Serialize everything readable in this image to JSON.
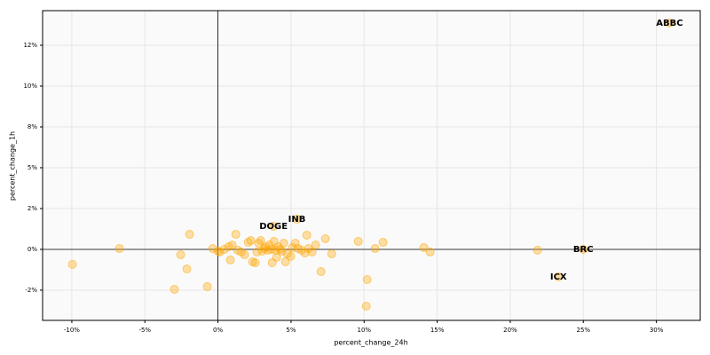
{
  "chart_data": {
    "type": "scatter",
    "xlabel": "percent_change_24h",
    "ylabel": "percent_change_1h",
    "series": [
      {
        "color": "#ffa500",
        "x": [
          -9.96,
          -6.74,
          -1.94,
          -2.55,
          -2.13,
          -2.98,
          -0.73,
          -0.36,
          0.0,
          0.12,
          0.43,
          0.73,
          0.97,
          0.85,
          1.22,
          1.34,
          1.58,
          1.82,
          2.07,
          2.25,
          2.37,
          2.55,
          2.67,
          2.79,
          2.92,
          3.04,
          3.16,
          3.28,
          3.4,
          3.52,
          3.65,
          3.71,
          3.83,
          3.95,
          4.01,
          4.13,
          4.25,
          4.37,
          4.5,
          4.62,
          4.74,
          4.98,
          5.1,
          5.29,
          5.47,
          5.71,
          5.95,
          6.08,
          6.2,
          6.44,
          6.68,
          7.05,
          7.35,
          7.78,
          9.6,
          10.21,
          10.15,
          10.75,
          11.3,
          14.09,
          14.52,
          21.87,
          30.9,
          5.4,
          3.8,
          25.0,
          23.3
        ],
        "values": [
          -0.92,
          0.05,
          0.92,
          -0.33,
          -1.2,
          -2.45,
          -2.28,
          0.05,
          -0.11,
          -0.16,
          0,
          0.16,
          0.27,
          -0.65,
          0.92,
          -0.05,
          -0.16,
          -0.33,
          0.43,
          0.54,
          -0.76,
          -0.82,
          -0.16,
          0.38,
          0.54,
          -0.11,
          0.05,
          0.16,
          -0.05,
          0.27,
          0,
          -0.82,
          0.49,
          -0.05,
          -0.49,
          0.16,
          0,
          -0.11,
          0.38,
          -0.76,
          -0.27,
          -0.43,
          0.11,
          0.38,
          0.05,
          -0.05,
          -0.22,
          0.87,
          0.05,
          -0.16,
          0.27,
          -1.36,
          0.65,
          -0.27,
          0.49,
          -1.85,
          -3.48,
          0.05,
          0.43,
          0.11,
          -0.16,
          -0.05,
          13.86,
          1.85,
          1.41,
          0,
          -1.68
        ]
      }
    ],
    "annotations": [
      {
        "text": "ABBC",
        "x": 30.9,
        "y": 13.86
      },
      {
        "text": "INB",
        "x": 5.4,
        "y": 1.85
      },
      {
        "text": "DOGE",
        "x": 3.8,
        "y": 1.41
      },
      {
        "text": "BRC",
        "x": 25.0,
        "y": 0
      },
      {
        "text": "ICX",
        "x": 23.3,
        "y": -1.68
      }
    ],
    "xlim": [
      -12,
      33
    ],
    "ylim": [
      -4.35,
      14.62
    ],
    "xticks": [
      {
        "value": -10,
        "label": "-10%"
      },
      {
        "value": -5,
        "label": "-5%"
      },
      {
        "value": 0,
        "label": "0%"
      },
      {
        "value": 5,
        "label": "5%"
      },
      {
        "value": 10,
        "label": "10%"
      },
      {
        "value": 15,
        "label": "15%"
      },
      {
        "value": 20,
        "label": "20%"
      },
      {
        "value": 25,
        "label": "25%"
      },
      {
        "value": 30,
        "label": "30%"
      }
    ],
    "yticks": [
      {
        "value": -2.5,
        "label": "-2%"
      },
      {
        "value": 0,
        "label": "0%"
      },
      {
        "value": 2.5,
        "label": "2%"
      },
      {
        "value": 5,
        "label": "5%"
      },
      {
        "value": 7.5,
        "label": "8%"
      },
      {
        "value": 10,
        "label": "10%"
      },
      {
        "value": 12.5,
        "label": "12%"
      }
    ],
    "grid": true
  }
}
